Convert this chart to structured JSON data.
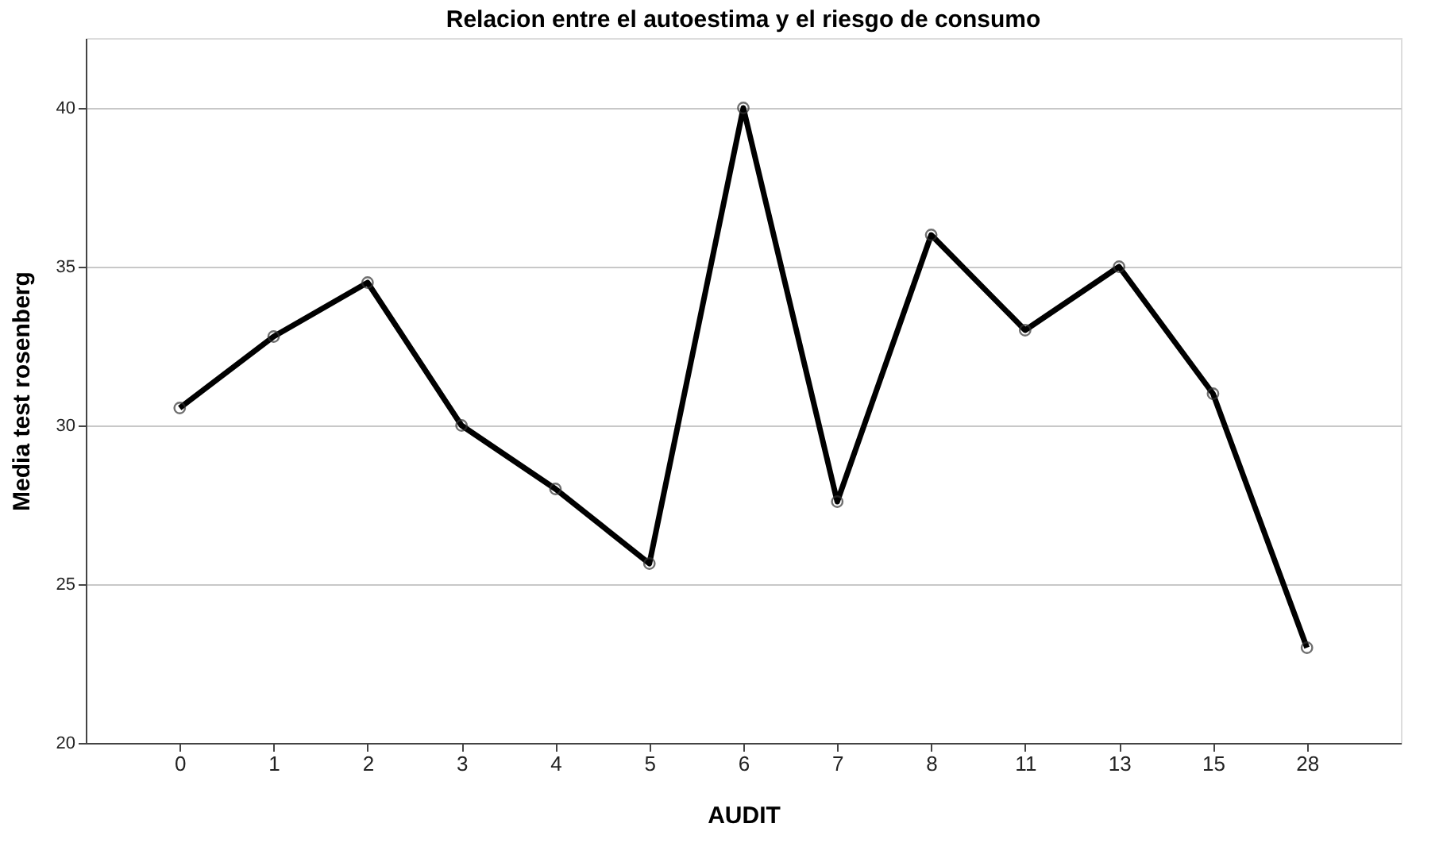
{
  "chart_data": {
    "type": "line",
    "title": "Relacion entre el autoestima y el riesgo de consumo",
    "xlabel": "AUDIT",
    "ylabel": "Media test rosenberg",
    "categories": [
      "0",
      "1",
      "2",
      "3",
      "4",
      "5",
      "6",
      "7",
      "8",
      "11",
      "13",
      "15",
      "28"
    ],
    "series": [
      {
        "color": "#000000",
        "values": [
          30.55,
          32.8,
          34.5,
          30,
          28,
          25.65,
          40,
          27.6,
          36,
          33,
          35,
          31,
          23
        ]
      }
    ],
    "ylim": [
      20,
      42.2
    ],
    "yticks": [
      20,
      25,
      30,
      35,
      40
    ],
    "grid": "y",
    "marker": "circle",
    "line_style": "solid",
    "legend": false
  }
}
